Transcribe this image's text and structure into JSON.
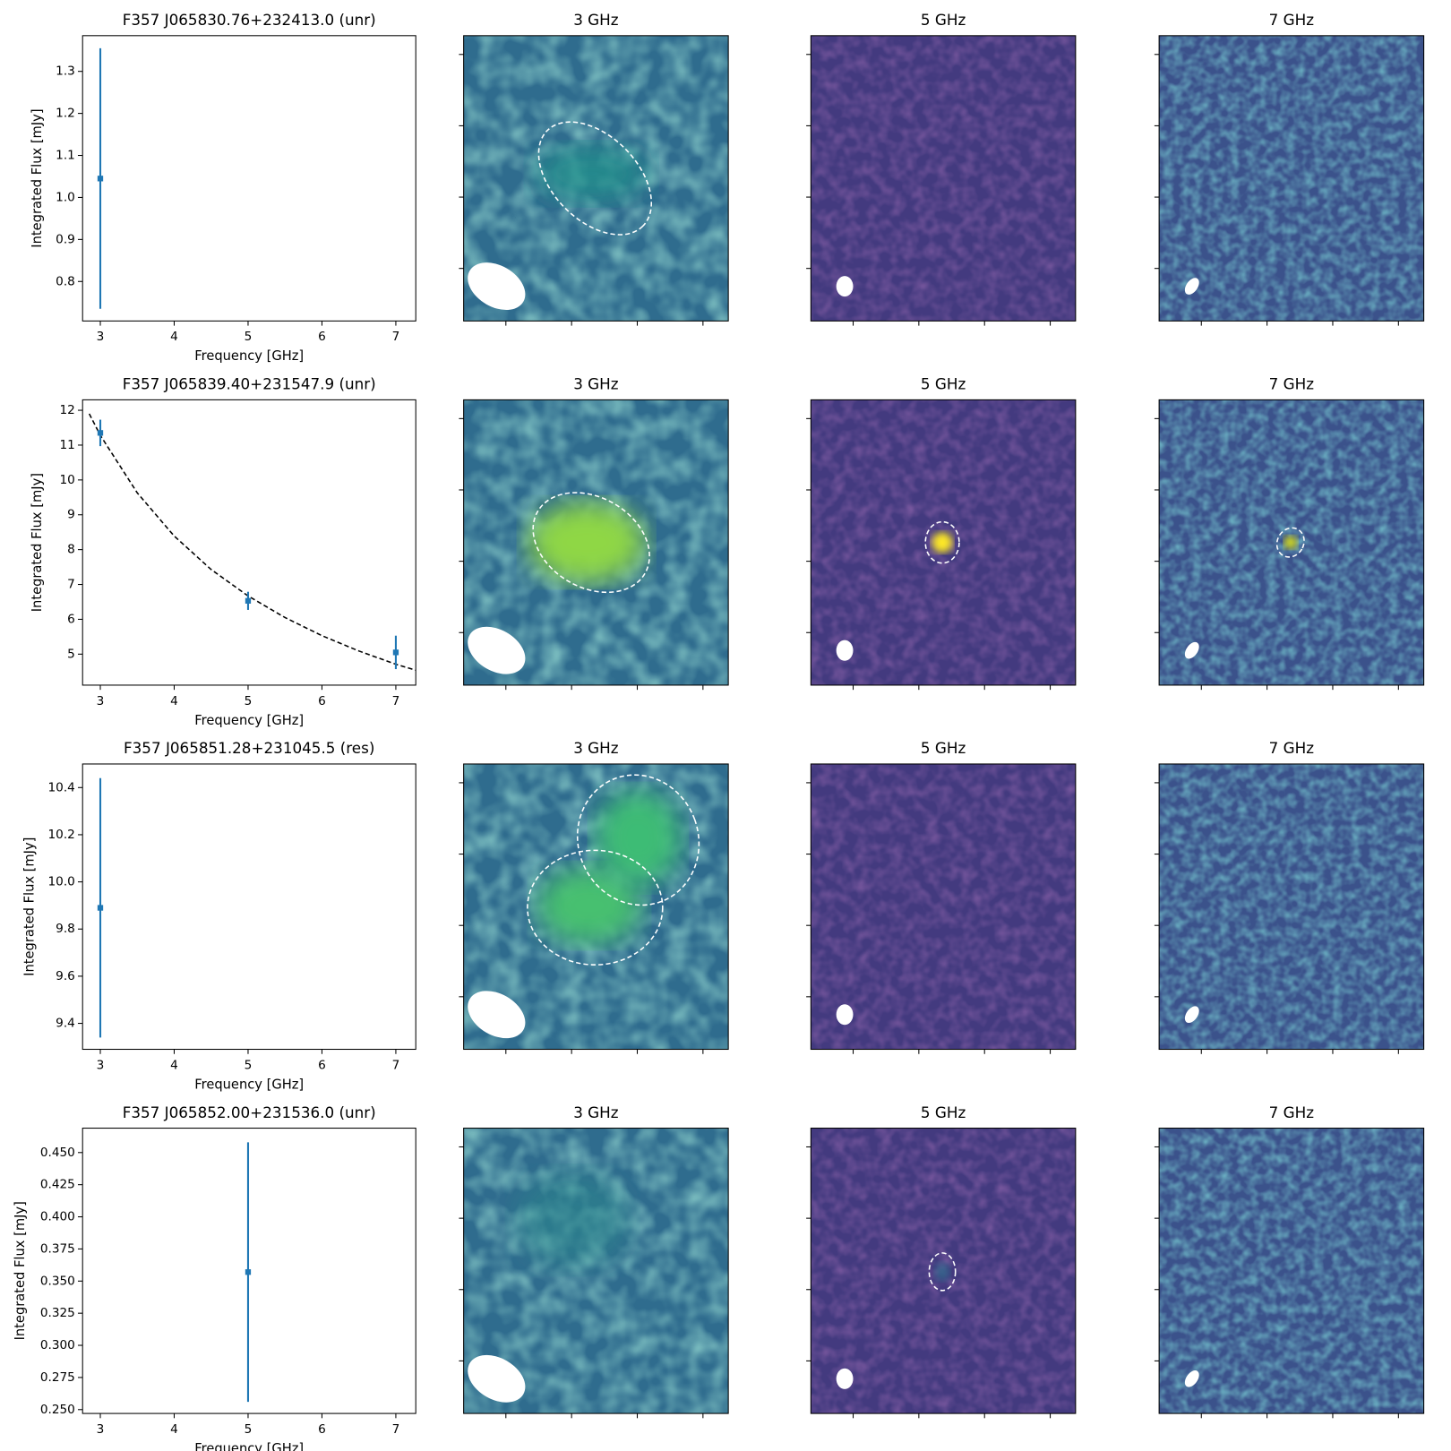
{
  "chart_data": [
    {
      "type": "errorbar",
      "title": "F357 J065830.76+232413.0 (unr)",
      "xlabel": "Frequency [GHz]",
      "ylabel": "Integrated Flux [mJy]",
      "x": [
        3
      ],
      "values": [
        1.045
      ],
      "errors": [
        0.31
      ],
      "color": "#1f77b4",
      "xlim": [
        2.76,
        7.27
      ],
      "xticks": [
        3,
        4,
        5,
        6,
        7
      ],
      "ylim": [
        0.706,
        1.385
      ],
      "yticks": [
        0.8,
        0.9,
        {
          "value": 1.0,
          "label": "1.0"
        },
        1.1,
        1.2,
        1.3
      ]
    },
    {
      "type": "errorbar",
      "title": "F357 J065839.40+231547.9 (unr)",
      "xlabel": "Frequency [GHz]",
      "ylabel": "Integrated Flux [mJy]",
      "x": [
        3,
        5,
        7
      ],
      "values": [
        11.35,
        6.53,
        5.05
      ],
      "errors": [
        0.38,
        0.26,
        0.48
      ],
      "color": "#1f77b4",
      "fit": {
        "x": [
          2.85,
          3,
          3.5,
          4,
          4.5,
          5,
          5.5,
          6,
          6.5,
          7,
          7.27
        ],
        "values": [
          11.9,
          11.28,
          9.63,
          8.39,
          7.43,
          6.67,
          6.05,
          5.53,
          5.09,
          4.71,
          4.54
        ],
        "color": "#000000"
      },
      "xlim": [
        2.76,
        7.27
      ],
      "xticks": [
        3,
        4,
        5,
        6,
        7
      ],
      "ylim": [
        4.11,
        12.3
      ],
      "yticks": [
        5,
        6,
        7,
        8,
        9,
        10,
        11,
        12
      ]
    },
    {
      "type": "errorbar",
      "title": "F357 J065851.28+231045.5 (res)",
      "xlabel": "Frequency [GHz]",
      "ylabel": "Integrated Flux [mJy]",
      "x": [
        3
      ],
      "values": [
        9.89
      ],
      "errors": [
        0.55
      ],
      "color": "#1f77b4",
      "xlim": [
        2.76,
        7.27
      ],
      "xticks": [
        3,
        4,
        5,
        6,
        7
      ],
      "ylim": [
        9.29,
        10.5
      ],
      "yticks": [
        9.4,
        9.6,
        9.8,
        {
          "value": 10.0,
          "label": "10.0"
        },
        10.2,
        10.4
      ]
    },
    {
      "type": "errorbar",
      "title": "F357 J065852.00+231536.0 (unr)",
      "xlabel": "Frequency [GHz]",
      "ylabel": "Integrated Flux [mJy]",
      "x": [
        5
      ],
      "values": [
        0.357
      ],
      "errors": [
        0.101
      ],
      "color": "#1f77b4",
      "xlim": [
        2.76,
        7.27
      ],
      "xticks": [
        3,
        4,
        5,
        6,
        7
      ],
      "ylim": [
        0.247,
        0.469
      ],
      "yticks": [
        {
          "value": 0.25,
          "label": "0.250"
        },
        {
          "value": 0.275,
          "label": "0.275"
        },
        {
          "value": 0.3,
          "label": "0.300"
        },
        {
          "value": 0.325,
          "label": "0.325"
        },
        {
          "value": 0.35,
          "label": "0.350"
        },
        {
          "value": 0.375,
          "label": "0.375"
        },
        {
          "value": 0.4,
          "label": "0.400"
        },
        {
          "value": 0.425,
          "label": "0.425"
        },
        {
          "value": 0.45,
          "label": "0.450"
        }
      ]
    }
  ],
  "image_panels": [
    [
      "3 GHz",
      "5 GHz",
      "7 GHz"
    ],
    [
      "3 GHz",
      "5 GHz",
      "7 GHz"
    ],
    [
      "3 GHz",
      "5 GHz",
      "7 GHz"
    ],
    [
      "3 GHz",
      "5 GHz",
      "7 GHz"
    ]
  ]
}
